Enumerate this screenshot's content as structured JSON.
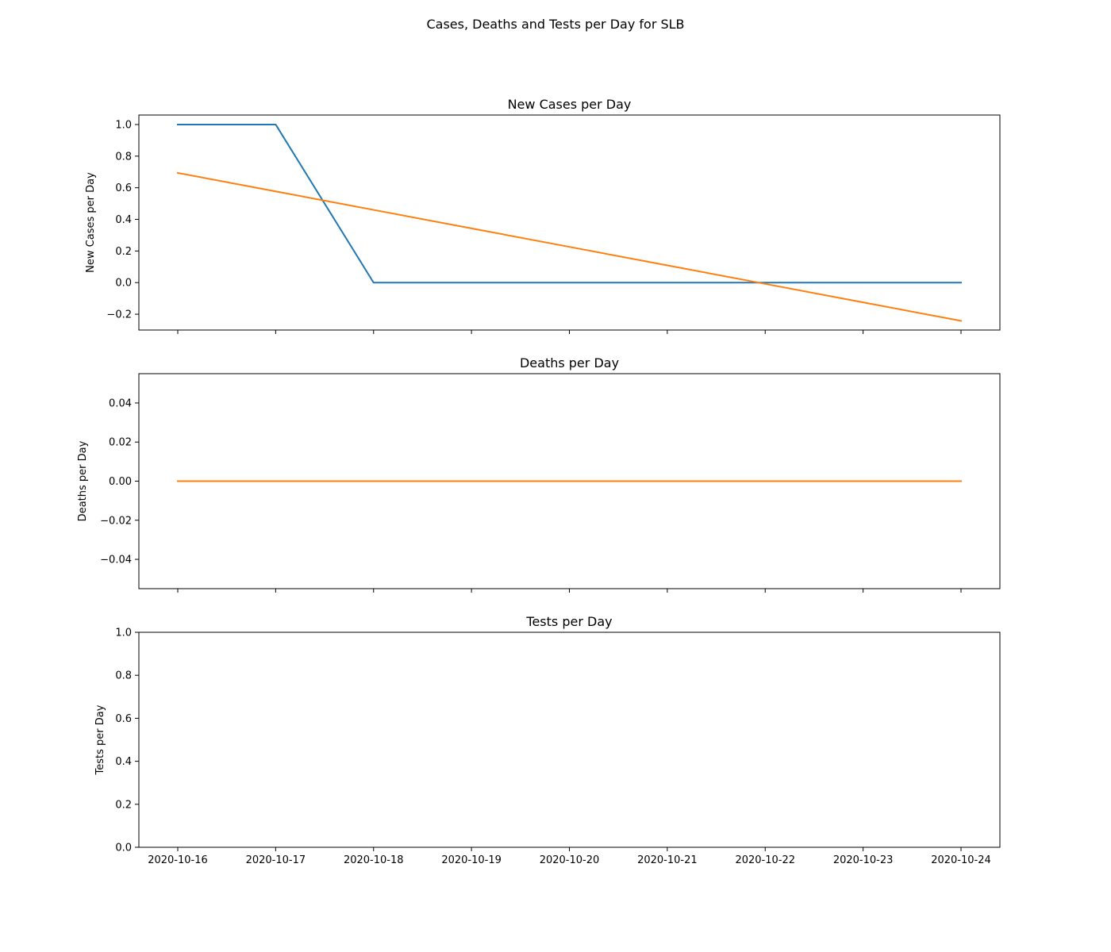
{
  "figure": {
    "suptitle": "Cases, Deaths and Tests per Day for SLB"
  },
  "chart_data": [
    {
      "type": "line",
      "title": "New Cases per Day",
      "xlabel": "",
      "ylabel": "New Cases per Day",
      "x": [
        "2020-10-16",
        "2020-10-17",
        "2020-10-18",
        "2020-10-19",
        "2020-10-20",
        "2020-10-21",
        "2020-10-22",
        "2020-10-23",
        "2020-10-24"
      ],
      "x_tick_labels": [
        "2020-10-16",
        "2020-10-17",
        "2020-10-18",
        "2020-10-19",
        "2020-10-20",
        "2020-10-21",
        "2020-10-22",
        "2020-10-23",
        "2020-10-24"
      ],
      "show_x_tick_labels": false,
      "ylim": [
        -0.3,
        1.06
      ],
      "yticks": [
        -0.2,
        0.0,
        0.2,
        0.4,
        0.6,
        0.8,
        1.0
      ],
      "ytick_labels": [
        "−0.2",
        "0.0",
        "0.2",
        "0.4",
        "0.6",
        "0.8",
        "1.0"
      ],
      "grid": false,
      "series": [
        {
          "color": "#1f77b4",
          "values": [
            1,
            1,
            0,
            0,
            0,
            0,
            0,
            0,
            0
          ]
        },
        {
          "color": "#ff7f0e",
          "values": [
            0.694,
            0.577,
            0.46,
            0.343,
            0.226,
            0.109,
            -0.008,
            -0.125,
            -0.242
          ]
        }
      ]
    },
    {
      "type": "line",
      "title": "Deaths per Day",
      "xlabel": "",
      "ylabel": "Deaths per Day",
      "x": [
        "2020-10-16",
        "2020-10-17",
        "2020-10-18",
        "2020-10-19",
        "2020-10-20",
        "2020-10-21",
        "2020-10-22",
        "2020-10-23",
        "2020-10-24"
      ],
      "x_tick_labels": [
        "2020-10-16",
        "2020-10-17",
        "2020-10-18",
        "2020-10-19",
        "2020-10-20",
        "2020-10-21",
        "2020-10-22",
        "2020-10-23",
        "2020-10-24"
      ],
      "show_x_tick_labels": false,
      "ylim": [
        -0.055,
        0.055
      ],
      "yticks": [
        -0.04,
        -0.02,
        0.0,
        0.02,
        0.04
      ],
      "ytick_labels": [
        "−0.04",
        "−0.02",
        "0.00",
        "0.02",
        "0.04"
      ],
      "grid": false,
      "series": [
        {
          "color": "#1f77b4",
          "values": [
            0,
            0,
            0,
            0,
            0,
            0,
            0,
            0,
            0
          ]
        },
        {
          "color": "#ff7f0e",
          "values": [
            0,
            0,
            0,
            0,
            0,
            0,
            0,
            0,
            0
          ]
        }
      ]
    },
    {
      "type": "line",
      "title": "Tests per Day",
      "xlabel": "",
      "ylabel": "Tests per Day",
      "x": [
        "2020-10-16",
        "2020-10-17",
        "2020-10-18",
        "2020-10-19",
        "2020-10-20",
        "2020-10-21",
        "2020-10-22",
        "2020-10-23",
        "2020-10-24"
      ],
      "x_tick_labels": [
        "2020-10-16",
        "2020-10-17",
        "2020-10-18",
        "2020-10-19",
        "2020-10-20",
        "2020-10-21",
        "2020-10-22",
        "2020-10-23",
        "2020-10-24"
      ],
      "show_x_tick_labels": true,
      "ylim": [
        0,
        1
      ],
      "yticks": [
        0.0,
        0.2,
        0.4,
        0.6,
        0.8,
        1.0
      ],
      "ytick_labels": [
        "0.0",
        "0.2",
        "0.4",
        "0.6",
        "0.8",
        "1.0"
      ],
      "grid": false,
      "series": []
    }
  ]
}
